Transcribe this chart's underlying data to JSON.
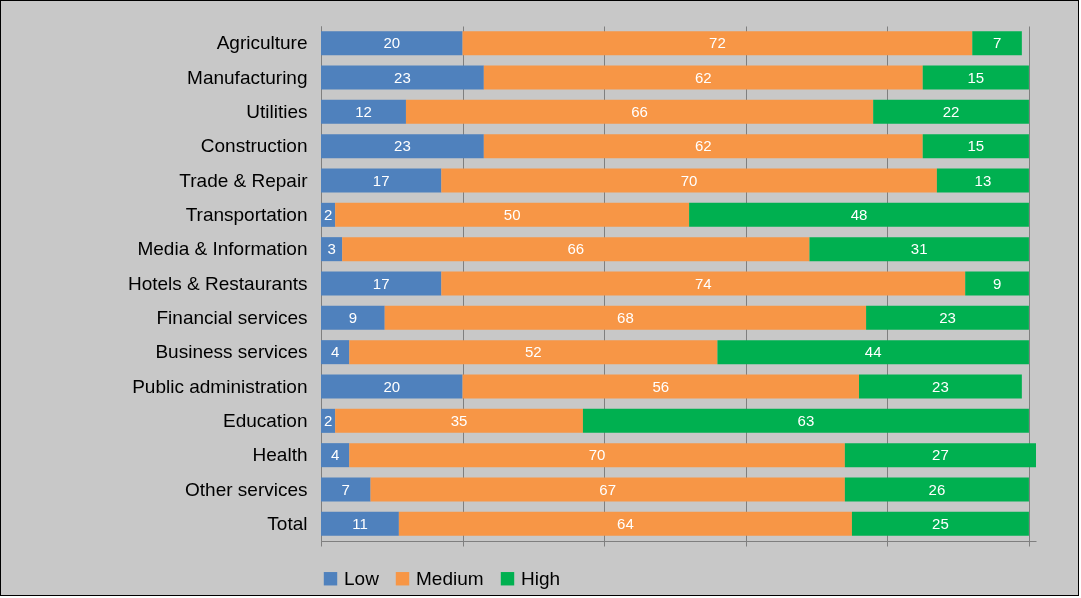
{
  "chart_data": {
    "type": "bar",
    "orientation": "horizontal",
    "stacked": true,
    "data_labels": true,
    "grid": "x",
    "legend": "bottom",
    "tick_labels": "y",
    "categories": [
      "Agriculture",
      "Manufacturing",
      "Utilities",
      "Construction",
      "Trade & Repair",
      "Transportation",
      "Media & Information",
      "Hotels & Restaurants",
      "Financial services",
      "Business services",
      "Public administration",
      "Education",
      "Health",
      "Other services",
      "Total"
    ],
    "xlim": [
      0,
      101
    ],
    "xticks": [
      {
        "value": 0,
        "label": null
      },
      {
        "value": 20,
        "label": null
      },
      {
        "value": 40,
        "label": null
      },
      {
        "value": 60,
        "label": null
      },
      {
        "value": 80,
        "label": null
      },
      {
        "value": 100,
        "label": null
      }
    ],
    "series": [
      {
        "name": "Low",
        "color": "#4f81bd",
        "values": [
          20,
          23,
          12,
          23,
          17,
          2,
          3,
          17,
          9,
          4,
          20,
          2,
          4,
          7,
          11
        ]
      },
      {
        "name": "Medium",
        "color": "#f79646",
        "values": [
          72,
          62,
          66,
          62,
          70,
          50,
          66,
          74,
          68,
          52,
          56,
          35,
          70,
          67,
          64
        ]
      },
      {
        "name": "High",
        "color": "#00b050",
        "values": [
          7,
          15,
          22,
          15,
          13,
          48,
          31,
          9,
          23,
          44,
          23,
          63,
          27,
          26,
          25
        ]
      }
    ]
  }
}
